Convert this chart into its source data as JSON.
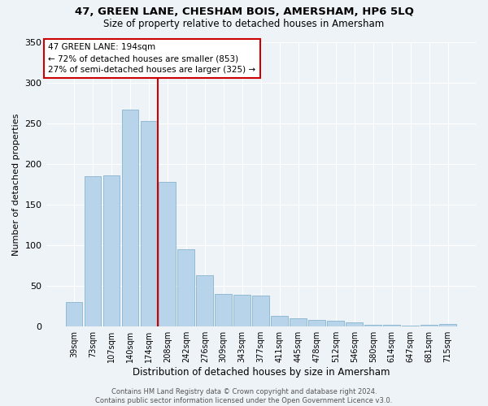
{
  "title": "47, GREEN LANE, CHESHAM BOIS, AMERSHAM, HP6 5LQ",
  "subtitle": "Size of property relative to detached houses in Amersham",
  "xlabel": "Distribution of detached houses by size in Amersham",
  "ylabel": "Number of detached properties",
  "bar_color": "#b8d4ea",
  "bar_edge_color": "#7aaac8",
  "background_color": "#eef3f8",
  "grid_color": "#ffffff",
  "categories": [
    "39sqm",
    "73sqm",
    "107sqm",
    "140sqm",
    "174sqm",
    "208sqm",
    "242sqm",
    "276sqm",
    "309sqm",
    "343sqm",
    "377sqm",
    "411sqm",
    "445sqm",
    "478sqm",
    "512sqm",
    "546sqm",
    "580sqm",
    "614sqm",
    "647sqm",
    "681sqm",
    "715sqm"
  ],
  "values": [
    30,
    185,
    186,
    267,
    253,
    178,
    95,
    63,
    40,
    39,
    38,
    13,
    10,
    8,
    7,
    5,
    2,
    2,
    1,
    2,
    3
  ],
  "property_label": "47 GREEN LANE: 194sqm",
  "annotation_line1": "← 72% of detached houses are smaller (853)",
  "annotation_line2": "27% of semi-detached houses are larger (325) →",
  "vline_color": "#cc0000",
  "annotation_box_color": "#ffffff",
  "annotation_box_edge": "#cc0000",
  "ylim": [
    0,
    350
  ],
  "yticks": [
    0,
    50,
    100,
    150,
    200,
    250,
    300,
    350
  ],
  "vline_x_index": 5,
  "footer_line1": "Contains HM Land Registry data © Crown copyright and database right 2024.",
  "footer_line2": "Contains public sector information licensed under the Open Government Licence v3.0."
}
